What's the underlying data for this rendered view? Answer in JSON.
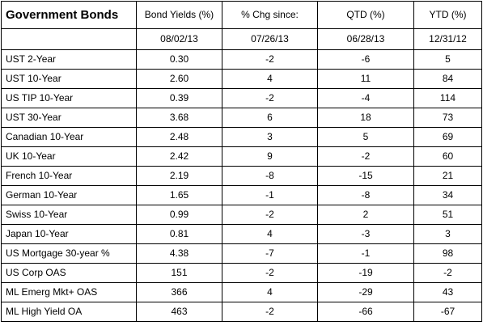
{
  "table": {
    "title": "Government Bonds",
    "headers": [
      "Bond Yields (%)",
      "% Chg since:",
      "QTD (%)",
      "YTD (%)"
    ],
    "dates": [
      "08/02/13",
      "07/26/13",
      "06/28/13",
      "12/31/12"
    ],
    "rows": [
      {
        "name": "UST 2-Year",
        "yield": "0.30",
        "chg": "-2",
        "qtd": "-6",
        "ytd": "5"
      },
      {
        "name": "UST 10-Year",
        "yield": "2.60",
        "chg": "4",
        "qtd": "11",
        "ytd": "84"
      },
      {
        "name": "US TIP 10-Year",
        "yield": "0.39",
        "chg": "-2",
        "qtd": "-4",
        "ytd": "114"
      },
      {
        "name": "UST 30-Year",
        "yield": "3.68",
        "chg": "6",
        "qtd": "18",
        "ytd": "73"
      },
      {
        "name": "Canadian 10-Year",
        "yield": "2.48",
        "chg": "3",
        "qtd": "5",
        "ytd": "69"
      },
      {
        "name": "UK 10-Year",
        "yield": "2.42",
        "chg": "9",
        "qtd": "-2",
        "ytd": "60"
      },
      {
        "name": "French 10-Year",
        "yield": "2.19",
        "chg": "-8",
        "qtd": "-15",
        "ytd": "21"
      },
      {
        "name": "German 10-Year",
        "yield": "1.65",
        "chg": "-1",
        "qtd": "-8",
        "ytd": "34"
      },
      {
        "name": "Swiss 10-Year",
        "yield": "0.99",
        "chg": "-2",
        "qtd": "2",
        "ytd": "51"
      },
      {
        "name": "Japan 10-Year",
        "yield": "0.81",
        "chg": "4",
        "qtd": "-3",
        "ytd": "3"
      },
      {
        "name": "US Mortgage 30-year %",
        "yield": "4.38",
        "chg": "-7",
        "qtd": "-1",
        "ytd": "98"
      },
      {
        "name": "US Corp OAS",
        "yield": "151",
        "chg": "-2",
        "qtd": "-19",
        "ytd": "-2"
      },
      {
        "name": "ML Emerg Mkt+ OAS",
        "yield": "366",
        "chg": "4",
        "qtd": "-29",
        "ytd": "43"
      },
      {
        "name": "ML High Yield OA",
        "yield": "463",
        "chg": "-2",
        "qtd": "-66",
        "ytd": "-67"
      }
    ]
  }
}
